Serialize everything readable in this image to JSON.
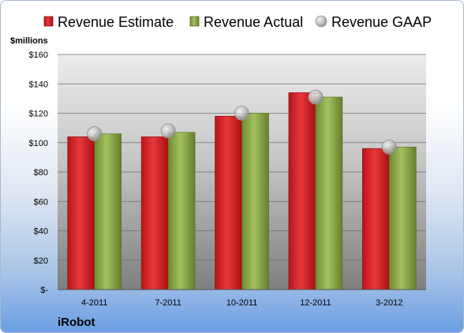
{
  "chart_data": {
    "type": "bar",
    "categories": [
      "4-2011",
      "7-2011",
      "10-2011",
      "12-2011",
      "3-2012"
    ],
    "series": [
      {
        "name": "Revenue Estimate",
        "values": [
          104,
          104,
          118,
          134,
          96
        ],
        "color": "#d9262b",
        "kind": "bar"
      },
      {
        "name": "Revenue Actual",
        "values": [
          106,
          107,
          120,
          131,
          97
        ],
        "color": "#8fae4b",
        "kind": "bar"
      },
      {
        "name": "Revenue GAAP",
        "values": [
          106,
          108,
          120,
          131,
          97
        ],
        "color": "#b8b8b8",
        "kind": "marker"
      }
    ],
    "ylabel": "$millions",
    "ylim": [
      0,
      160
    ],
    "yticks": [
      0,
      20,
      40,
      60,
      80,
      100,
      120,
      140,
      160
    ],
    "ytick_labels": [
      "$-",
      "$20",
      "$40",
      "$60",
      "$80",
      "$100",
      "$120",
      "$140",
      "$160"
    ],
    "grid": true,
    "legend_position": "top",
    "footer_label": "iRobot"
  }
}
